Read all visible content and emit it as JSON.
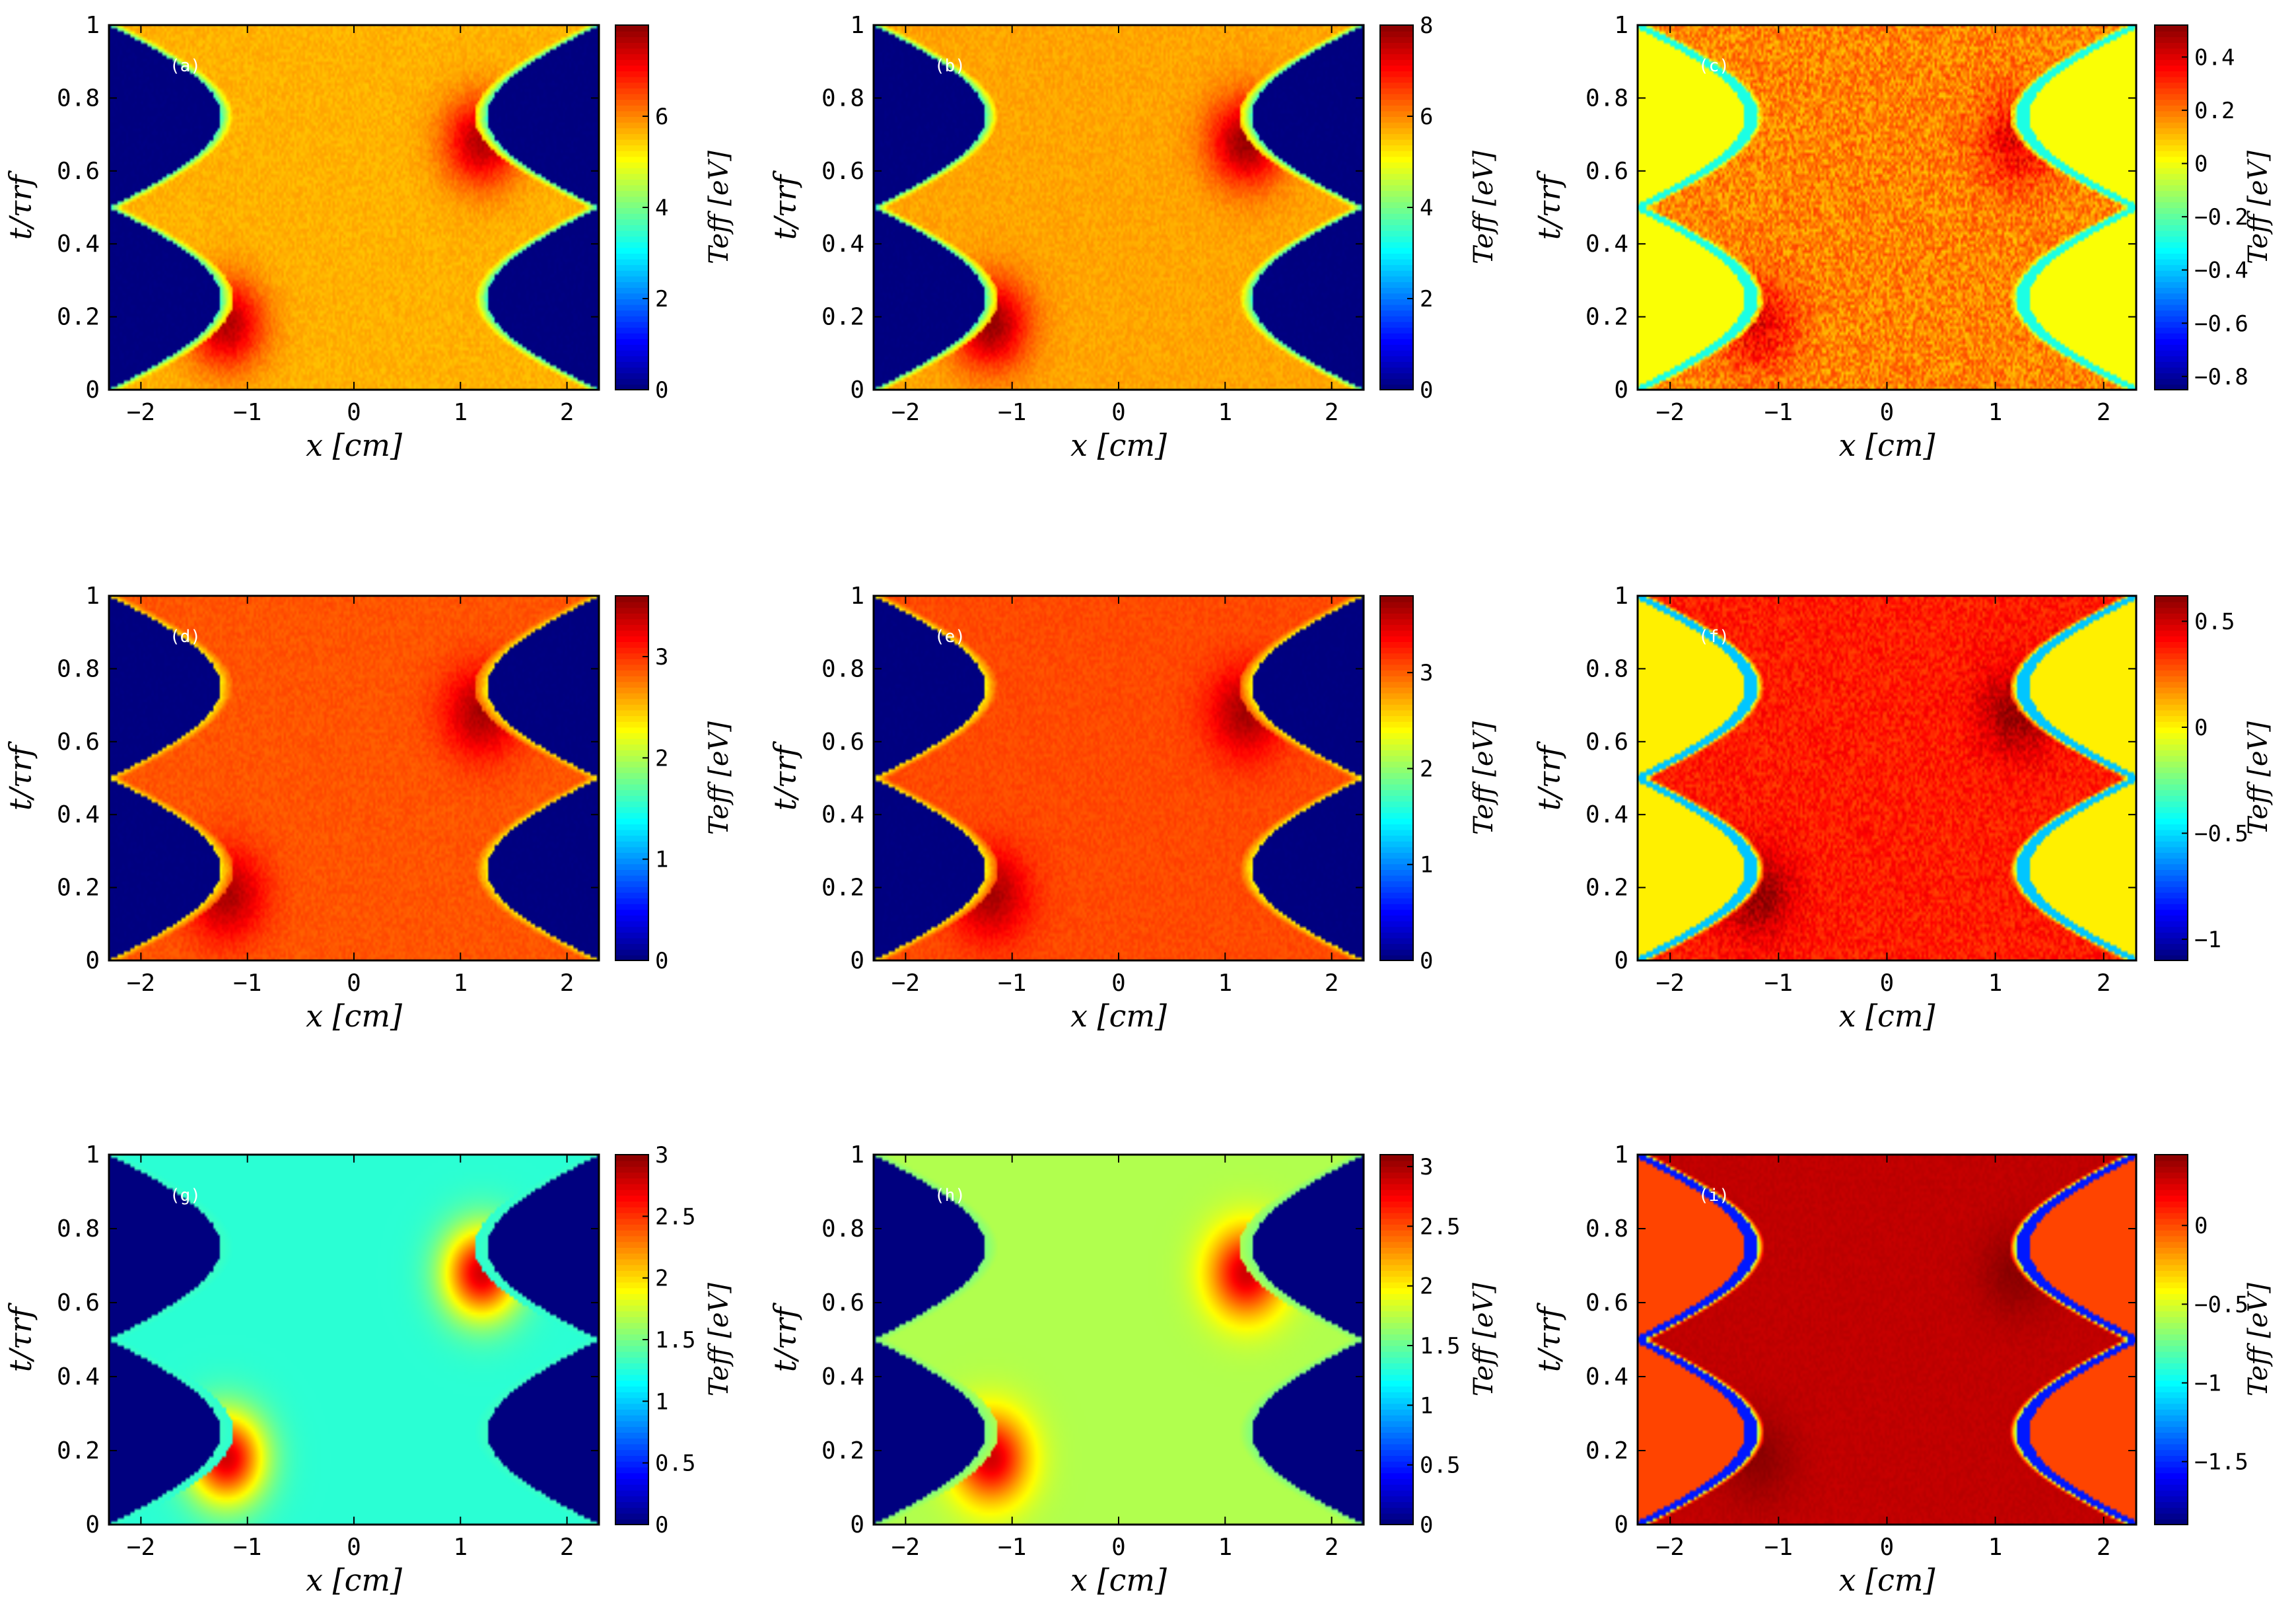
{
  "colors": {
    "jet": [
      "#00007f",
      "#0000ff",
      "#007fff",
      "#00ffff",
      "#7fff7f",
      "#ffff00",
      "#ff7f00",
      "#ff0000",
      "#7f0000"
    ],
    "axis": "#000000",
    "background": "#ffffff"
  },
  "chart_data": [
    {
      "type": "heatmap",
      "panel_label": "(a)",
      "xlabel": "x [cm]",
      "ylabel": "t/τrf",
      "colorbar_label": "Teff [eV]",
      "xlim": [
        -2.3,
        2.3
      ],
      "ylim": [
        0,
        1
      ],
      "xticks": [
        "−2",
        "−1",
        "0",
        "1",
        "2"
      ],
      "yticks": [
        "0",
        "0.2",
        "0.4",
        "0.6",
        "0.8",
        "1"
      ],
      "clim": [
        0,
        8
      ],
      "cticks": [
        "0",
        "2",
        "4",
        "6"
      ],
      "cvals": [
        0,
        2,
        4,
        6
      ],
      "sheath": "vac",
      "regions": {
        "vac": 0,
        "edge": 3.5,
        "bulk": 5.6,
        "hot": 7.6,
        "noise": 0.15
      }
    },
    {
      "type": "heatmap",
      "panel_label": "(b)",
      "xlabel": "x [cm]",
      "ylabel": "t/τrf",
      "colorbar_label": "Teff [eV]",
      "xlim": [
        -2.3,
        2.3
      ],
      "ylim": [
        0,
        1
      ],
      "xticks": [
        "−2",
        "−1",
        "0",
        "1",
        "2"
      ],
      "yticks": [
        "0",
        "0.2",
        "0.4",
        "0.6",
        "0.8",
        "1"
      ],
      "clim": [
        0,
        8
      ],
      "cticks": [
        "0",
        "2",
        "4",
        "6",
        "8"
      ],
      "cvals": [
        0,
        2,
        4,
        6,
        8
      ],
      "sheath": "vac",
      "regions": {
        "vac": 0,
        "edge": 3.5,
        "bulk": 5.7,
        "hot": 7.8,
        "noise": 0.15
      }
    },
    {
      "type": "heatmap",
      "panel_label": "(c)",
      "xlabel": "x [cm]",
      "ylabel": "t/τrf",
      "colorbar_label": "Teff [eV]",
      "xlim": [
        -2.3,
        2.3
      ],
      "ylim": [
        0,
        1
      ],
      "xticks": [
        "−2",
        "−1",
        "0",
        "1",
        "2"
      ],
      "yticks": [
        "0",
        "0.2",
        "0.4",
        "0.6",
        "0.8",
        "1"
      ],
      "clim": [
        -0.85,
        0.52
      ],
      "cticks": [
        "−0.8",
        "−0.6",
        "−0.4",
        "−0.2",
        "0",
        "0.2",
        "0.4"
      ],
      "cvals": [
        -0.8,
        -0.6,
        -0.4,
        -0.2,
        0,
        0.2,
        0.4
      ],
      "sheath": "diff",
      "regions": {
        "vac": 0,
        "edge": -0.3,
        "bulk": 0.17,
        "hot": 0.38,
        "noise": 0.09
      }
    },
    {
      "type": "heatmap",
      "panel_label": "(d)",
      "xlabel": "x [cm]",
      "ylabel": "t/τrf",
      "colorbar_label": "Teff [eV]",
      "xlim": [
        -2.3,
        2.3
      ],
      "ylim": [
        0,
        1
      ],
      "xticks": [
        "−2",
        "−1",
        "0",
        "1",
        "2"
      ],
      "yticks": [
        "0",
        "0.2",
        "0.4",
        "0.6",
        "0.8",
        "1"
      ],
      "clim": [
        0,
        3.6
      ],
      "cticks": [
        "0",
        "1",
        "2",
        "3"
      ],
      "cvals": [
        0,
        1,
        2,
        3
      ],
      "sheath": "vac",
      "regions": {
        "vac": 0,
        "edge": 2.3,
        "bulk": 2.85,
        "hot": 3.45,
        "noise": 0.06
      }
    },
    {
      "type": "heatmap",
      "panel_label": "(e)",
      "xlabel": "x [cm]",
      "ylabel": "t/τrf",
      "colorbar_label": "Teff [eV]",
      "xlim": [
        -2.3,
        2.3
      ],
      "ylim": [
        0,
        1
      ],
      "xticks": [
        "−2",
        "−1",
        "0",
        "1",
        "2"
      ],
      "yticks": [
        "0",
        "0.2",
        "0.4",
        "0.6",
        "0.8",
        "1"
      ],
      "clim": [
        0,
        3.8
      ],
      "cticks": [
        "0",
        "1",
        "2",
        "3"
      ],
      "cvals": [
        0,
        1,
        2,
        3
      ],
      "sheath": "vac",
      "regions": {
        "vac": 0,
        "edge": 2.4,
        "bulk": 3.05,
        "hot": 3.65,
        "noise": 0.06
      }
    },
    {
      "type": "heatmap",
      "panel_label": "(f)",
      "xlabel": "x [cm]",
      "ylabel": "t/τrf",
      "colorbar_label": "Teff [eV]",
      "xlim": [
        -2.3,
        2.3
      ],
      "ylim": [
        0,
        1
      ],
      "xticks": [
        "−2",
        "−1",
        "0",
        "1",
        "2"
      ],
      "yticks": [
        "0",
        "0.2",
        "0.4",
        "0.6",
        "0.8",
        "1"
      ],
      "clim": [
        -1.1,
        0.62
      ],
      "cticks": [
        "−1",
        "−0.5",
        "0",
        "0.5"
      ],
      "cvals": [
        -1,
        -0.5,
        0,
        0.5
      ],
      "sheath": "diff",
      "regions": {
        "vac": 0,
        "edge": -0.55,
        "bulk": 0.36,
        "hot": 0.58,
        "noise": 0.07
      }
    },
    {
      "type": "heatmap",
      "panel_label": "(g)",
      "xlabel": "x [cm]",
      "ylabel": "t/τrf",
      "colorbar_label": "Teff [eV]",
      "xlim": [
        -2.3,
        2.3
      ],
      "ylim": [
        0,
        1
      ],
      "xticks": [
        "−2",
        "−1",
        "0",
        "1",
        "2"
      ],
      "yticks": [
        "0",
        "0.2",
        "0.4",
        "0.6",
        "0.8",
        "1"
      ],
      "clim": [
        0,
        3
      ],
      "cticks": [
        "0",
        "0.5",
        "1",
        "1.5",
        "2",
        "2.5",
        "3"
      ],
      "cvals": [
        0,
        0.5,
        1,
        1.5,
        2,
        2.5,
        3
      ],
      "sheath": "vac",
      "regions": {
        "vac": 0,
        "edge": 1.3,
        "bulk": 1.25,
        "hot": 2.75,
        "noise": 0
      }
    },
    {
      "type": "heatmap",
      "panel_label": "(h)",
      "xlabel": "x [cm]",
      "ylabel": "t/τrf",
      "colorbar_label": "Teff [eV]",
      "xlim": [
        -2.3,
        2.3
      ],
      "ylim": [
        0,
        1
      ],
      "xticks": [
        "−2",
        "−1",
        "0",
        "1",
        "2"
      ],
      "yticks": [
        "0",
        "0.2",
        "0.4",
        "0.6",
        "0.8",
        "1"
      ],
      "clim": [
        0,
        3.1
      ],
      "cticks": [
        "0",
        "0.5",
        "1",
        "1.5",
        "2",
        "2.5",
        "3"
      ],
      "cvals": [
        0,
        0.5,
        1,
        1.5,
        2,
        2.5,
        3
      ],
      "sheath": "vac",
      "regions": {
        "vac": 0,
        "edge": 1.55,
        "bulk": 1.7,
        "hot": 2.85,
        "noise": 0
      }
    },
    {
      "type": "heatmap",
      "panel_label": "(i)",
      "xlabel": "x [cm]",
      "ylabel": "t/τrf",
      "colorbar_label": "Teff [eV]",
      "xlim": [
        -2.3,
        2.3
      ],
      "ylim": [
        0,
        1
      ],
      "xticks": [
        "−2",
        "−1",
        "0",
        "1",
        "2"
      ],
      "yticks": [
        "0",
        "0.2",
        "0.4",
        "0.6",
        "0.8",
        "1"
      ],
      "clim": [
        -1.9,
        0.45
      ],
      "cticks": [
        "−1.5",
        "−1",
        "−0.5",
        "0"
      ],
      "cvals": [
        -1.5,
        -1,
        -0.5,
        0
      ],
      "sheath": "diff",
      "regions": {
        "vac": 0,
        "edge": -1.55,
        "bulk": 0.3,
        "hot": 0.42,
        "noise": 0.02
      }
    }
  ]
}
